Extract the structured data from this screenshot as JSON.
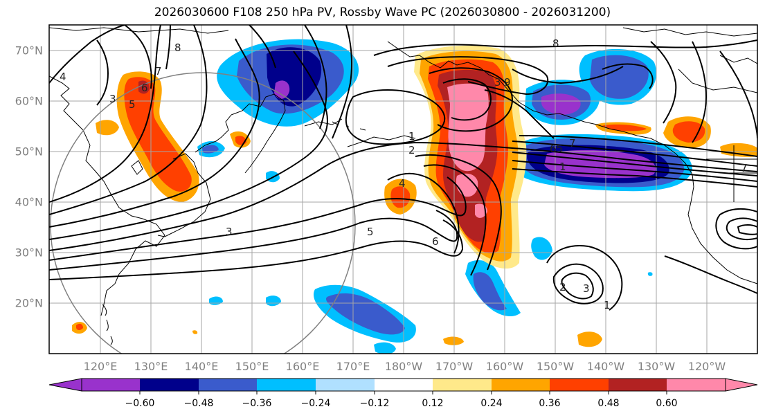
{
  "title": "2026030600 F108 250 hPa PV, Rossby Wave PC (2026030800 - 2026031200)",
  "latitude_labels": [
    "70°N",
    "60°N",
    "50°N",
    "40°N",
    "30°N",
    "20°N"
  ],
  "longitude_labels": [
    "120°E",
    "130°E",
    "140°E",
    "150°E",
    "160°E",
    "170°E",
    "180°W",
    "170°W",
    "160°W",
    "150°W",
    "140°W",
    "130°W",
    "120°W"
  ],
  "colorbar": {
    "tick_labels": [
      "−0.60",
      "−0.48",
      "−0.36",
      "−0.24",
      "−0.12",
      "0.12",
      "0.24",
      "0.36",
      "0.48",
      "0.60"
    ],
    "colors": [
      "#9932CC",
      "#00008B",
      "#3A5BCC",
      "#00BFFF",
      "#B0E0FF",
      "#FFFFFF",
      "#FFE98A",
      "#FFA500",
      "#FF4000",
      "#B22222",
      "#FF88AA"
    ]
  },
  "contour_labels": [
    {
      "text": "4",
      "id": "c1"
    },
    {
      "text": "6",
      "id": "c2"
    },
    {
      "text": "7",
      "id": "c3"
    },
    {
      "text": "8",
      "id": "c4"
    },
    {
      "text": "3",
      "id": "c5"
    },
    {
      "text": "5",
      "id": "c6"
    },
    {
      "text": "3",
      "id": "c7"
    },
    {
      "text": "8",
      "id": "c8"
    },
    {
      "text": "1",
      "id": "c9"
    },
    {
      "text": "2",
      "id": "c10"
    },
    {
      "text": "4",
      "id": "c11"
    },
    {
      "text": "5",
      "id": "c12"
    },
    {
      "text": "6",
      "id": "c13"
    },
    {
      "text": "1",
      "id": "c14"
    },
    {
      "text": "7",
      "id": "c15"
    },
    {
      "text": "65",
      "id": "c16"
    },
    {
      "text": "7",
      "id": "c17"
    },
    {
      "text": "2",
      "id": "c18"
    },
    {
      "text": "3",
      "id": "c19"
    },
    {
      "text": "1",
      "id": "c20"
    },
    {
      "text": "9",
      "id": "c21"
    },
    {
      "text": "3",
      "id": "c22"
    }
  ]
}
